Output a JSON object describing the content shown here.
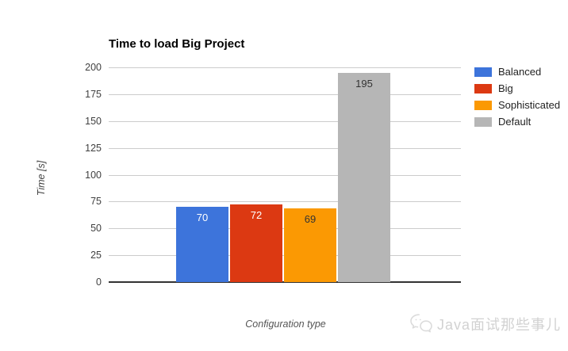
{
  "chart_data": {
    "type": "bar",
    "title": "Time to load Big Project",
    "categories": [
      "Balanced",
      "Big",
      "Sophisticated",
      "Default"
    ],
    "values": [
      70,
      72,
      69,
      195
    ],
    "colors": [
      "#3D74DB",
      "#DC3912",
      "#FB9903",
      "#B6B6B6"
    ],
    "value_label_colors": [
      "#ffffff",
      "#ffffff",
      "#333333",
      "#333333"
    ],
    "xlabel": "Configuration type",
    "ylabel": "Time [s]",
    "ylim": [
      0,
      200
    ],
    "yticks": [
      0,
      25,
      50,
      75,
      100,
      125,
      150,
      175,
      200
    ],
    "grid": true,
    "legend_position": "right",
    "legend": [
      {
        "label": "Balanced",
        "color": "#3D74DB"
      },
      {
        "label": "Big",
        "color": "#DC3912"
      },
      {
        "label": "Sophisticated",
        "color": "#FB9903"
      },
      {
        "label": "Default",
        "color": "#B6B6B6"
      }
    ]
  },
  "watermark": {
    "text": "Java面试那些事儿",
    "icon": "wechat-icon",
    "color": "#d2d2d2"
  }
}
